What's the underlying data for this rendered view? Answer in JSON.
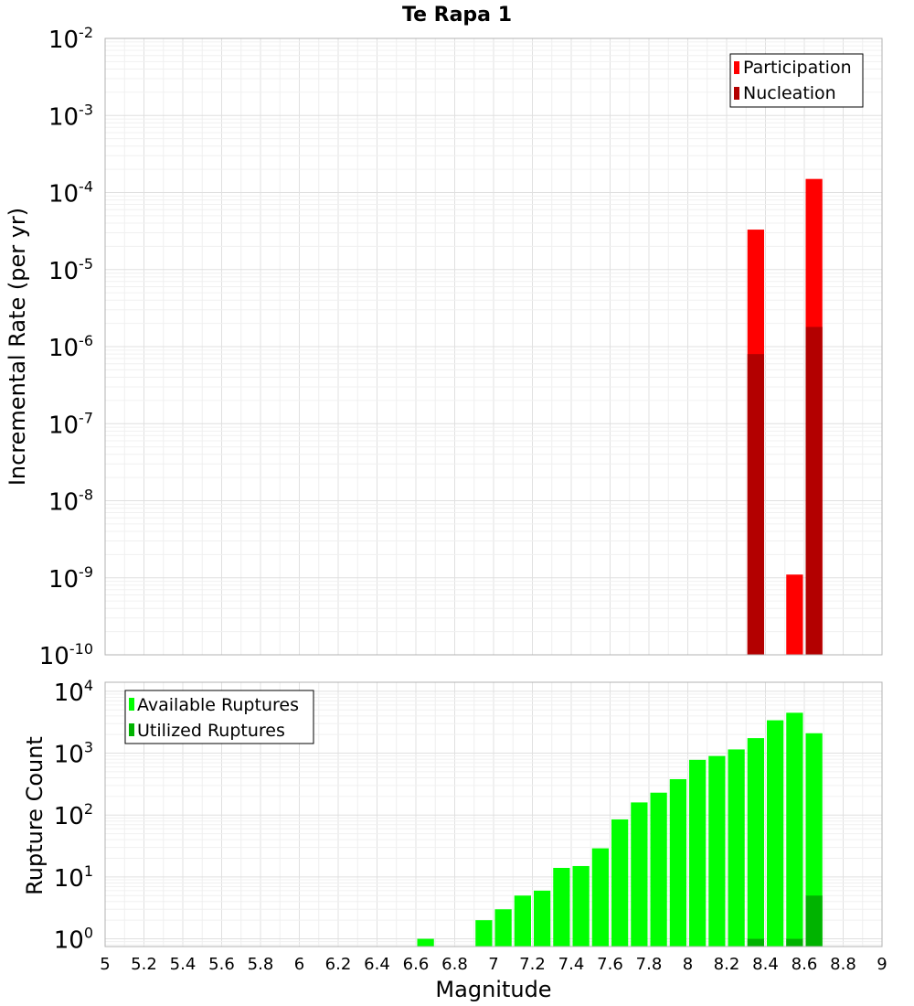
{
  "title": "Te Rapa 1",
  "colors": {
    "participation": "#ff0000",
    "nucleation": "#b30000",
    "available": "#00ff00",
    "utilized": "#00b300",
    "grid": "#e6e6e6",
    "frame": "#b3b3b3"
  },
  "chart_data": [
    {
      "type": "bar",
      "name": "rate",
      "yscale": "log",
      "xlim": [
        5,
        9
      ],
      "ylim": [
        1e-10,
        0.01
      ],
      "ylabel": "Incremental Rate (per yr)",
      "yticks": [
        {
          "base": "10",
          "exp": "-10",
          "value": 1e-10
        },
        {
          "base": "10",
          "exp": "-9",
          "value": 1e-09
        },
        {
          "base": "10",
          "exp": "-8",
          "value": 1e-08
        },
        {
          "base": "10",
          "exp": "-7",
          "value": 1e-07
        },
        {
          "base": "10",
          "exp": "-6",
          "value": 1e-06
        },
        {
          "base": "10",
          "exp": "-5",
          "value": 1e-05
        },
        {
          "base": "10",
          "exp": "-4",
          "value": 0.0001
        },
        {
          "base": "10",
          "exp": "-3",
          "value": 0.001
        },
        {
          "base": "10",
          "exp": "-2",
          "value": 0.01
        }
      ],
      "legend": [
        {
          "label": "Participation",
          "key": "participation"
        },
        {
          "label": "Nucleation",
          "key": "nucleation"
        }
      ],
      "series": [
        {
          "name": "Participation",
          "key": "participation",
          "x": [
            8.35,
            8.55,
            8.65
          ],
          "values": [
            3.3e-05,
            1.1e-09,
            0.00015
          ]
        },
        {
          "name": "Nucleation",
          "key": "nucleation",
          "x": [
            8.35,
            8.65
          ],
          "values": [
            8e-07,
            1.8e-06
          ]
        }
      ]
    },
    {
      "type": "bar",
      "name": "count",
      "yscale": "log",
      "xlim": [
        5,
        9
      ],
      "ylim": [
        0.75,
        14000
      ],
      "ylabel": "Rupture Count",
      "xlabel": "Magnitude",
      "yticks": [
        {
          "base": "10",
          "exp": "0",
          "value": 1
        },
        {
          "base": "10",
          "exp": "1",
          "value": 10
        },
        {
          "base": "10",
          "exp": "2",
          "value": 100
        },
        {
          "base": "10",
          "exp": "3",
          "value": 1000
        },
        {
          "base": "10",
          "exp": "4",
          "value": 10000
        }
      ],
      "xticks": [
        "5",
        "5.2",
        "5.4",
        "5.6",
        "5.8",
        "6",
        "6.2",
        "6.4",
        "6.6",
        "6.8",
        "7",
        "7.2",
        "7.4",
        "7.6",
        "7.8",
        "8",
        "8.2",
        "8.4",
        "8.6",
        "8.8",
        "9"
      ],
      "legend": [
        {
          "label": "Available Ruptures",
          "key": "available"
        },
        {
          "label": "Utilized Ruptures",
          "key": "utilized"
        }
      ],
      "series": [
        {
          "name": "Available Ruptures",
          "key": "available",
          "x": [
            6.65,
            6.95,
            7.05,
            7.15,
            7.25,
            7.35,
            7.45,
            7.55,
            7.65,
            7.75,
            7.85,
            7.95,
            8.05,
            8.15,
            8.25,
            8.35,
            8.45,
            8.55,
            8.65
          ],
          "values": [
            1,
            2,
            3,
            5,
            6,
            14,
            15,
            29,
            85,
            160,
            230,
            380,
            780,
            900,
            1150,
            1750,
            3400,
            4500,
            2100
          ]
        },
        {
          "name": "Utilized Ruptures",
          "key": "utilized",
          "x": [
            8.35,
            8.55,
            8.65
          ],
          "values": [
            1,
            1,
            5
          ]
        }
      ]
    }
  ]
}
